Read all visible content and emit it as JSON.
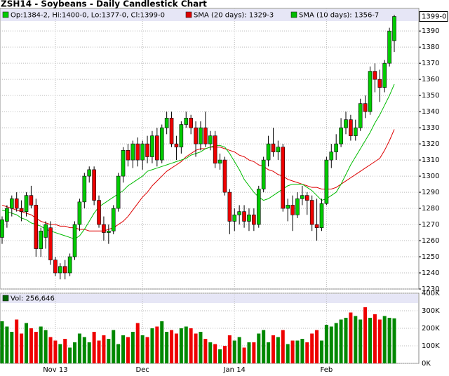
{
  "chart_data": [
    {
      "type": "candlestick",
      "title": "ZSH14 - Soybeans - Daily Candlestick Chart",
      "info": "Op:1384-2, Hi:1400-0, Lo:1377-0, Cl:1399-0",
      "categories": [
        null,
        null,
        null,
        null,
        null,
        null,
        null,
        null,
        null,
        null,
        null,
        "Nov 13",
        null,
        null,
        null,
        null,
        null,
        null,
        null,
        null,
        null,
        null,
        null,
        null,
        null,
        null,
        null,
        null,
        null,
        "Dec",
        null,
        null,
        null,
        null,
        null,
        null,
        null,
        null,
        null,
        null,
        null,
        null,
        null,
        null,
        null,
        null,
        null,
        null,
        "Jan 14",
        null,
        null,
        null,
        null,
        null,
        null,
        null,
        null,
        null,
        null,
        null,
        null,
        null,
        null,
        null,
        null,
        null,
        null,
        "Feb",
        null,
        null,
        null,
        null,
        null,
        null,
        null,
        null,
        null,
        null,
        null,
        null,
        null,
        null
      ],
      "open": [
        1262,
        1272,
        1280,
        1286,
        1280,
        1278,
        1288,
        1282,
        1255,
        1262,
        1268,
        1248,
        1240,
        1244,
        1240,
        1250,
        1270,
        1284,
        1300,
        1304,
        1285,
        1270,
        1265,
        1266,
        1280,
        1300,
        1316,
        1310,
        1320,
        1310,
        1320,
        1312,
        1325,
        1310,
        1330,
        1336,
        1320,
        1318,
        1332,
        1336,
        1330,
        1320,
        1330,
        1320,
        1325,
        1308,
        1310,
        1290,
        1272,
        1276,
        1278,
        1272,
        1276,
        1270,
        1292,
        1310,
        1320,
        1315,
        1318,
        1280,
        1282,
        1276,
        1286,
        1288,
        1285,
        1270,
        1268,
        1283,
        1310,
        1315,
        1320,
        1330,
        1335,
        1325,
        1330,
        1345,
        1340,
        1365,
        1360,
        1355,
        1370,
        1384
      ],
      "high": [
        1275,
        1282,
        1288,
        1290,
        1285,
        1290,
        1294,
        1286,
        1268,
        1272,
        1272,
        1250,
        1246,
        1248,
        1252,
        1272,
        1286,
        1302,
        1306,
        1306,
        1288,
        1275,
        1270,
        1282,
        1302,
        1318,
        1320,
        1322,
        1324,
        1322,
        1325,
        1328,
        1330,
        1332,
        1340,
        1340,
        1325,
        1334,
        1340,
        1338,
        1334,
        1334,
        1340,
        1328,
        1328,
        1314,
        1312,
        1292,
        1280,
        1282,
        1282,
        1280,
        1280,
        1294,
        1312,
        1325,
        1330,
        1322,
        1320,
        1286,
        1288,
        1290,
        1294,
        1290,
        1288,
        1286,
        1286,
        1312,
        1320,
        1326,
        1336,
        1340,
        1338,
        1335,
        1348,
        1350,
        1368,
        1370,
        1366,
        1372,
        1392,
        1400
      ],
      "low": [
        1258,
        1268,
        1275,
        1278,
        1272,
        1275,
        1280,
        1250,
        1250,
        1255,
        1245,
        1238,
        1236,
        1236,
        1238,
        1248,
        1266,
        1280,
        1296,
        1282,
        1268,
        1260,
        1258,
        1264,
        1278,
        1296,
        1306,
        1305,
        1306,
        1304,
        1308,
        1308,
        1306,
        1308,
        1326,
        1318,
        1310,
        1314,
        1330,
        1326,
        1312,
        1316,
        1318,
        1316,
        1305,
        1304,
        1288,
        1264,
        1266,
        1270,
        1268,
        1266,
        1266,
        1268,
        1290,
        1306,
        1312,
        1310,
        1278,
        1272,
        1266,
        1274,
        1282,
        1276,
        1266,
        1260,
        1266,
        1282,
        1305,
        1310,
        1318,
        1326,
        1322,
        1322,
        1328,
        1336,
        1338,
        1352,
        1346,
        1352,
        1368,
        1377
      ],
      "close": [
        1273,
        1280,
        1286,
        1280,
        1278,
        1288,
        1282,
        1255,
        1266,
        1270,
        1248,
        1240,
        1244,
        1240,
        1250,
        1270,
        1284,
        1300,
        1304,
        1285,
        1270,
        1265,
        1266,
        1280,
        1300,
        1316,
        1310,
        1320,
        1310,
        1320,
        1312,
        1325,
        1310,
        1330,
        1336,
        1320,
        1318,
        1332,
        1336,
        1330,
        1320,
        1330,
        1320,
        1325,
        1308,
        1310,
        1290,
        1272,
        1276,
        1278,
        1272,
        1276,
        1270,
        1292,
        1310,
        1320,
        1315,
        1318,
        1280,
        1282,
        1276,
        1286,
        1288,
        1285,
        1270,
        1268,
        1283,
        1310,
        1315,
        1320,
        1330,
        1335,
        1325,
        1330,
        1345,
        1340,
        1365,
        1360,
        1355,
        1370,
        1390,
        1399
      ],
      "up_color": "#00cc00",
      "down_color": "#ee0000",
      "series": [
        {
          "name": "SMA (20 days): 1329-3",
          "color": "#dd0000",
          "values": [
            1282,
            1281,
            1280,
            1279,
            1278,
            1277,
            1276,
            1274,
            1272,
            1271,
            1270,
            1270,
            1269,
            1269,
            1268,
            1268,
            1267,
            1267,
            1266,
            1266,
            1266,
            1266,
            1267,
            1268,
            1270,
            1272,
            1275,
            1279,
            1283,
            1287,
            1290,
            1294,
            1297,
            1300,
            1303,
            1305,
            1307,
            1309,
            1312,
            1314,
            1316,
            1317,
            1317,
            1318,
            1318,
            1318,
            1317,
            1316,
            1315,
            1313,
            1312,
            1310,
            1309,
            1307,
            1306,
            1304,
            1303,
            1301,
            1300,
            1298,
            1297,
            1296,
            1295,
            1294,
            1293,
            1293,
            1292,
            1292,
            1292,
            1293,
            1295,
            1297,
            1299,
            1301,
            1303,
            1305,
            1307,
            1309,
            1311,
            1316,
            1322,
            1329
          ]
        },
        {
          "name": "SMA (10 days): 1356-7",
          "color": "#00bb00",
          "values": [
            1279,
            1278,
            1277,
            1276,
            1274,
            1273,
            1271,
            1270,
            1269,
            1267,
            1266,
            1265,
            1264,
            1263,
            1262,
            1261,
            1263,
            1267,
            1272,
            1277,
            1281,
            1283,
            1285,
            1287,
            1289,
            1291,
            1294,
            1296,
            1298,
            1300,
            1303,
            1304,
            1305,
            1306,
            1307,
            1308,
            1309,
            1310,
            1311,
            1313,
            1314,
            1315,
            1317,
            1318,
            1319,
            1319,
            1318,
            1314,
            1309,
            1304,
            1298,
            1294,
            1290,
            1287,
            1285,
            1286,
            1288,
            1290,
            1292,
            1294,
            1295,
            1295,
            1295,
            1293,
            1291,
            1288,
            1285,
            1286,
            1288,
            1290,
            1295,
            1301,
            1307,
            1312,
            1317,
            1322,
            1327,
            1333,
            1338,
            1344,
            1350,
            1357
          ]
        }
      ],
      "ylim": [
        1230,
        1404
      ],
      "yticks": [
        1230,
        1240,
        1250,
        1260,
        1270,
        1280,
        1290,
        1300,
        1310,
        1320,
        1330,
        1340,
        1350,
        1360,
        1370,
        1380,
        1390
      ],
      "last_price": {
        "value": 1399,
        "label": "1399-0"
      },
      "grid": true
    },
    {
      "type": "bar",
      "title": "Vol: 256,646",
      "values": [
        240000,
        210000,
        180000,
        250000,
        170000,
        230000,
        200000,
        180000,
        210000,
        190000,
        150000,
        130000,
        110000,
        140000,
        90000,
        120000,
        170000,
        150000,
        120000,
        180000,
        130000,
        160000,
        140000,
        190000,
        110000,
        160000,
        150000,
        180000,
        230000,
        160000,
        150000,
        200000,
        210000,
        240000,
        180000,
        190000,
        170000,
        200000,
        210000,
        200000,
        170000,
        180000,
        140000,
        120000,
        110000,
        80000,
        100000,
        160000,
        130000,
        150000,
        90000,
        120000,
        120000,
        170000,
        190000,
        120000,
        160000,
        150000,
        190000,
        110000,
        130000,
        130000,
        140000,
        120000,
        170000,
        190000,
        130000,
        220000,
        210000,
        230000,
        250000,
        260000,
        290000,
        270000,
        250000,
        320000,
        260000,
        280000,
        250000,
        270000,
        260000,
        256646
      ],
      "ylim": [
        0,
        400000
      ],
      "yticks": [
        {
          "value": 0,
          "label": "0K"
        },
        {
          "value": 100000,
          "label": "100K"
        },
        {
          "value": 200000,
          "label": "200K"
        },
        {
          "value": 300000,
          "label": "300K"
        },
        {
          "value": 400000,
          "label": "400K"
        }
      ],
      "grid": true
    }
  ]
}
